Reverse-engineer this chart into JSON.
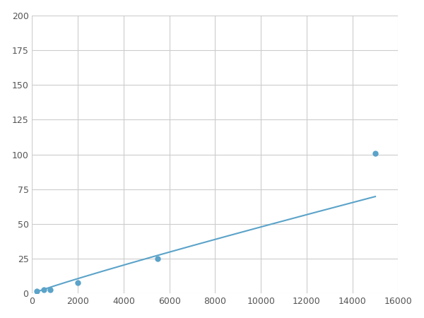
{
  "x": [
    200,
    500,
    800,
    2000,
    5500,
    15000
  ],
  "y": [
    2,
    3,
    3,
    8,
    25,
    101
  ],
  "line_color": "#5ba3c9",
  "marker_color": "#5ba3c9",
  "marker_size": 6,
  "line_width": 1.5,
  "xlim": [
    0,
    16000
  ],
  "ylim": [
    0,
    200
  ],
  "xticks": [
    0,
    2000,
    4000,
    6000,
    8000,
    10000,
    12000,
    14000,
    16000
  ],
  "yticks": [
    0,
    25,
    50,
    75,
    100,
    125,
    150,
    175,
    200
  ],
  "grid_color": "#cccccc",
  "bg_color": "#ffffff",
  "fig_bg_color": "#ffffff"
}
